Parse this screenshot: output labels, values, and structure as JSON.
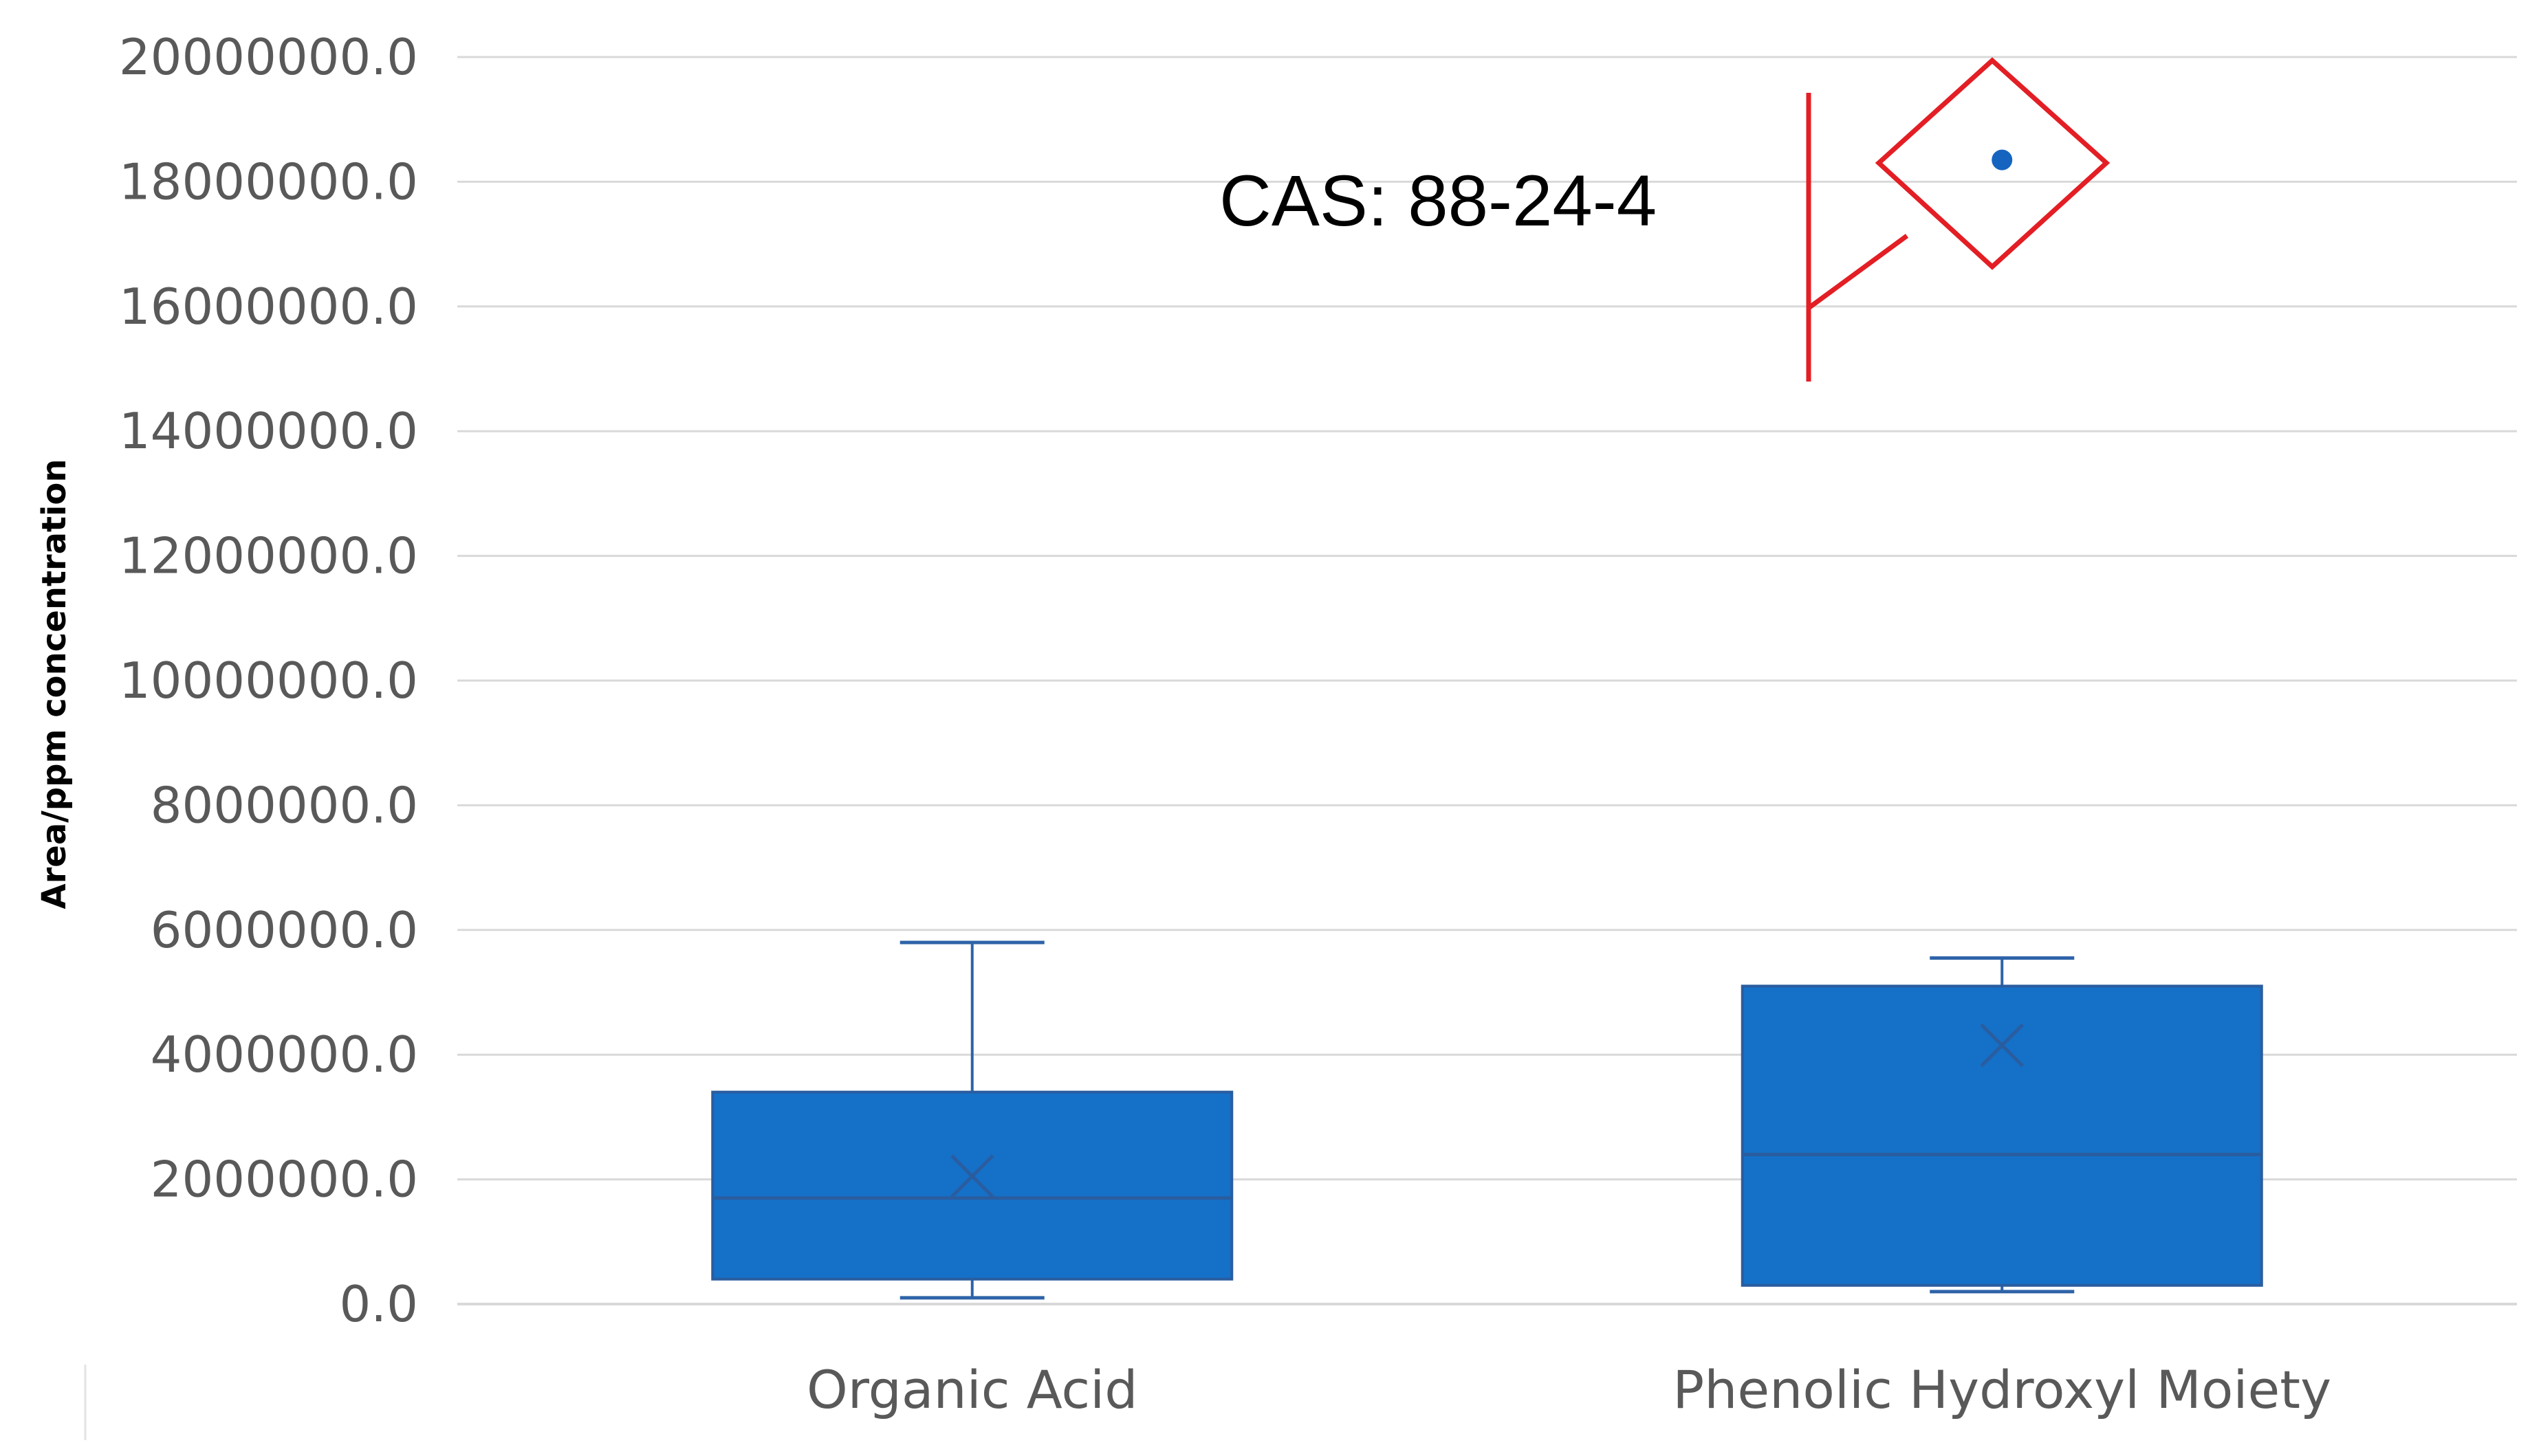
{
  "chart_data": {
    "type": "box",
    "title": "",
    "xlabel": "",
    "ylabel": "Area/ppm concentration",
    "ylim": [
      0,
      20000000
    ],
    "yticks": [
      "0.0",
      "2000000.0",
      "4000000.0",
      "6000000.0",
      "8000000.0",
      "10000000.0",
      "12000000.0",
      "14000000.0",
      "16000000.0",
      "18000000.0",
      "20000000.0"
    ],
    "grid": true,
    "categories": [
      "Organic Acid",
      "Phenolic Hydroxyl Moiety"
    ],
    "boxes": [
      {
        "category": "Organic Acid",
        "min": 100000,
        "q1": 400000,
        "median": 1700000,
        "q3": 3400000,
        "max": 5800000,
        "mean": 2050000,
        "outliers": []
      },
      {
        "category": "Phenolic Hydroxyl Moiety",
        "min": 200000,
        "q1": 300000,
        "median": 2400000,
        "q3": 5100000,
        "max": 5550000,
        "mean": 4150000,
        "outliers": [
          18350000
        ]
      }
    ],
    "annotations": [
      {
        "text": "CAS: 88-24-4"
      }
    ],
    "colors": {
      "box_fill": "#1570C8",
      "box_edge": "#2A5D9F",
      "whisker": "#2E63A8",
      "grid": "#D9D9D9",
      "outlier": "#1564C0",
      "annotation": "#E31E24"
    }
  }
}
